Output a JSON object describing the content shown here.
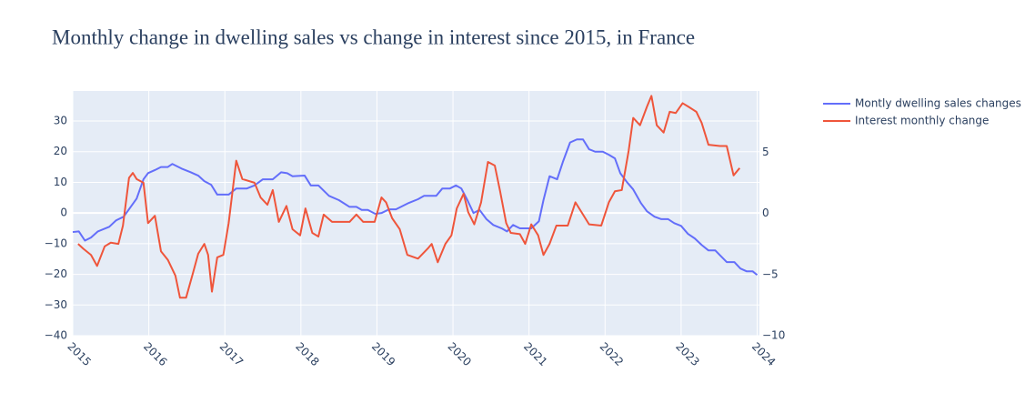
{
  "chart_data": {
    "type": "line",
    "title": "Monthly change in dwelling sales vs change in interest since 2015, in France",
    "xlim": [
      2015,
      2024.03
    ],
    "xticks": [
      2015,
      2016,
      2017,
      2018,
      2019,
      2020,
      2021,
      2022,
      2023,
      2024
    ],
    "ylim": [
      -40,
      39.8
    ],
    "yticks": [
      {
        "value": -40,
        "label": "−40"
      },
      {
        "value": -30,
        "label": "−30"
      },
      {
        "value": -20,
        "label": "−20"
      },
      {
        "value": -10,
        "label": "−10"
      },
      0,
      10,
      20,
      30
    ],
    "y2lim": [
      -10,
      10
    ],
    "y2ticks": [
      {
        "value": -10,
        "label": "−10"
      },
      {
        "value": -5,
        "label": "−5"
      },
      0,
      5
    ],
    "grid": true,
    "series": [
      {
        "name": "Montly dwelling sales changes",
        "color": "#636efa",
        "x": [
          2015.0,
          2015.08,
          2015.16,
          2015.24,
          2015.33,
          2015.48,
          2015.57,
          2015.67,
          2015.84,
          2015.93,
          2015.99,
          2016.08,
          2016.16,
          2016.25,
          2016.31,
          2016.43,
          2016.55,
          2016.65,
          2016.73,
          2016.82,
          2016.9,
          2017.05,
          2017.15,
          2017.29,
          2017.39,
          2017.5,
          2017.63,
          2017.74,
          2017.82,
          2017.89,
          2018.05,
          2018.13,
          2018.23,
          2018.37,
          2018.5,
          2018.64,
          2018.73,
          2018.8,
          2018.88,
          2018.98,
          2019.06,
          2019.16,
          2019.25,
          2019.42,
          2019.54,
          2019.62,
          2019.78,
          2019.86,
          2019.96,
          2020.04,
          2020.11,
          2020.19,
          2020.27,
          2020.35,
          2020.44,
          2020.53,
          2020.64,
          2020.71,
          2020.79,
          2020.88,
          2021.03,
          2021.13,
          2021.19,
          2021.27,
          2021.37,
          2021.45,
          2021.54,
          2021.63,
          2021.71,
          2021.79,
          2021.87,
          2021.97,
          2022.05,
          2022.13,
          2022.2,
          2022.29,
          2022.37,
          2022.47,
          2022.55,
          2022.65,
          2022.74,
          2022.83,
          2022.91,
          2023.0,
          2023.09,
          2023.18,
          2023.27,
          2023.36,
          2023.45,
          2023.52,
          2023.6,
          2023.7,
          2023.78,
          2023.86,
          2023.94,
          2024.0
        ],
        "values": [
          -6.2,
          -6,
          -9,
          -8,
          -6,
          -4.5,
          -2.4,
          -1.2,
          4.7,
          11,
          13,
          14,
          15,
          15,
          16,
          14.5,
          13.3,
          12.2,
          10.4,
          9.2,
          6,
          6,
          8,
          8,
          9,
          11,
          11,
          13.3,
          13,
          12,
          12.2,
          9,
          9,
          5.6,
          4.2,
          2,
          2,
          1,
          1,
          -0.3,
          0,
          1.2,
          1.2,
          3.3,
          4.5,
          5.6,
          5.6,
          8,
          8,
          9,
          8,
          4.2,
          0,
          1,
          -2,
          -3.9,
          -5,
          -6,
          -3.9,
          -5,
          -5,
          -2.7,
          4.2,
          12,
          11,
          17,
          23,
          24,
          24,
          20.8,
          20,
          20,
          19,
          17.8,
          13,
          10,
          7.7,
          3.3,
          0.6,
          -1.2,
          -2,
          -2,
          -3.3,
          -4.2,
          -6.8,
          -8.3,
          -10.4,
          -12.2,
          -12.2,
          -14,
          -16,
          -16,
          -18.1,
          -19,
          -19,
          -20.2
        ]
      },
      {
        "name": "Interest monthly change",
        "color": "#EF553B",
        "axis": "y2",
        "x": [
          2015.07,
          2015.14,
          2015.24,
          2015.32,
          2015.42,
          2015.5,
          2015.6,
          2015.66,
          2015.74,
          2015.79,
          2015.84,
          2015.93,
          2015.99,
          2016.08,
          2016.16,
          2016.25,
          2016.35,
          2016.41,
          2016.49,
          2016.58,
          2016.65,
          2016.73,
          2016.78,
          2016.83,
          2016.9,
          2016.98,
          2017.05,
          2017.15,
          2017.23,
          2017.39,
          2017.47,
          2017.56,
          2017.63,
          2017.71,
          2017.81,
          2017.89,
          2017.99,
          2018.06,
          2018.15,
          2018.23,
          2018.3,
          2018.41,
          2018.64,
          2018.73,
          2018.82,
          2018.97,
          2019.06,
          2019.12,
          2019.2,
          2019.3,
          2019.4,
          2019.54,
          2019.68,
          2019.72,
          2019.8,
          2019.9,
          2019.98,
          2020.05,
          2020.14,
          2020.2,
          2020.28,
          2020.37,
          2020.46,
          2020.55,
          2020.62,
          2020.7,
          2020.76,
          2020.88,
          2020.95,
          2021.03,
          2021.12,
          2021.19,
          2021.27,
          2021.36,
          2021.51,
          2021.61,
          2021.69,
          2021.79,
          2021.95,
          2022.05,
          2022.13,
          2022.22,
          2022.31,
          2022.37,
          2022.46,
          2022.55,
          2022.61,
          2022.68,
          2022.77,
          2022.85,
          2022.93,
          2023.02,
          2023.1,
          2023.2,
          2023.27,
          2023.36,
          2023.51,
          2023.6,
          2023.69,
          2023.77
        ],
        "values": [
          -2.5,
          -2.9,
          -3.4,
          -4.3,
          -2.7,
          -2.4,
          -2.5,
          -1,
          2.9,
          3.3,
          2.8,
          2.5,
          -0.8,
          -0.2,
          -3.1,
          -3.8,
          -5.1,
          -6.9,
          -6.9,
          -4.9,
          -3.3,
          -2.5,
          -3.4,
          -6.4,
          -3.6,
          -3.4,
          -0.8,
          4.3,
          2.8,
          2.5,
          1.3,
          0.7,
          1.9,
          -0.7,
          0.6,
          -1.3,
          -1.8,
          0.4,
          -1.6,
          -1.9,
          -0.1,
          -0.7,
          -0.7,
          -0.1,
          -0.7,
          -0.7,
          1.3,
          0.9,
          -0.4,
          -1.3,
          -3.4,
          -3.7,
          -2.8,
          -2.5,
          -4,
          -2.5,
          -1.8,
          0.4,
          1.6,
          0.1,
          -0.9,
          0.9,
          4.2,
          3.9,
          1.8,
          -0.8,
          -1.6,
          -1.7,
          -2.5,
          -0.9,
          -1.8,
          -3.4,
          -2.5,
          -1,
          -1,
          0.9,
          0.1,
          -0.9,
          -1,
          0.9,
          1.8,
          1.9,
          5.1,
          7.8,
          7.2,
          8.7,
          9.6,
          7.2,
          6.6,
          8.3,
          8.2,
          9,
          8.7,
          8.3,
          7.4,
          5.6,
          5.5,
          5.5,
          3.1,
          3.7
        ]
      }
    ]
  }
}
